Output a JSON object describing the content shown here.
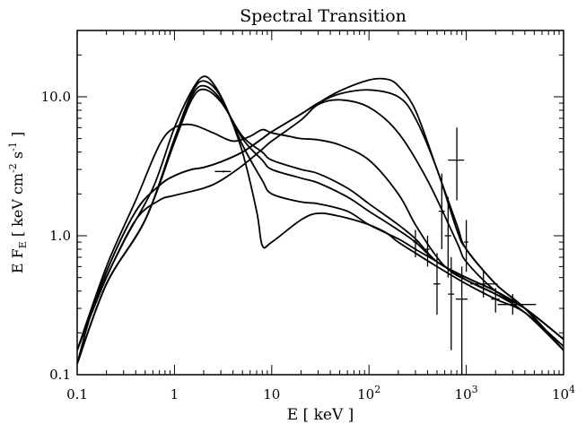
{
  "chart_data": {
    "type": "line",
    "title": "Spectral Transition",
    "xlabel": "E [ keV ]",
    "ylabel": "E F_E [ keV cm^-2 s^-1 ]",
    "x_scale": "log",
    "y_scale": "log",
    "xlim": [
      0.1,
      10000
    ],
    "ylim": [
      0.1,
      30
    ],
    "x_ticks": [
      {
        "value": 0.1,
        "label": "0.1"
      },
      {
        "value": 1,
        "label": "1"
      },
      {
        "value": 10,
        "label": "10"
      },
      {
        "value": 100,
        "label": "10",
        "exp": "2"
      },
      {
        "value": 1000,
        "label": "10",
        "exp": "3"
      },
      {
        "value": 10000,
        "label": "10",
        "exp": "4"
      }
    ],
    "y_ticks": [
      {
        "value": 0.1,
        "label": "0.1"
      },
      {
        "value": 1,
        "label": "1.0"
      },
      {
        "value": 10,
        "label": "10.0"
      }
    ],
    "grid": false,
    "legend": "none",
    "series": [
      {
        "x": [
          0.1,
          0.15,
          0.3,
          0.6,
          1.0,
          1.5,
          2.0,
          2.6,
          3.5,
          5,
          7,
          8,
          10,
          20,
          30,
          50,
          100,
          150,
          200,
          300,
          500,
          1000,
          2000,
          4000,
          10000
        ],
        "y": [
          0.12,
          0.32,
          0.9,
          2.2,
          6.0,
          11.0,
          14.0,
          12.0,
          8.0,
          4.0,
          1.5,
          0.85,
          0.9,
          1.3,
          1.45,
          1.38,
          1.2,
          1.05,
          0.9,
          0.75,
          0.6,
          0.45,
          0.35,
          0.28,
          0.16
        ]
      },
      {
        "x": [
          0.1,
          0.2,
          0.5,
          1,
          1.5,
          2,
          3,
          5,
          8,
          10,
          20,
          30,
          60,
          100,
          200,
          300,
          500,
          1000,
          2000,
          4000,
          10000
        ],
        "y": [
          0.12,
          0.45,
          1.3,
          5.0,
          10.5,
          13.0,
          10.0,
          4.5,
          2.5,
          2.0,
          1.75,
          1.7,
          1.5,
          1.2,
          0.95,
          0.8,
          0.65,
          0.48,
          0.38,
          0.3,
          0.18
        ]
      },
      {
        "x": [
          0.1,
          0.2,
          0.5,
          1,
          1.5,
          2,
          3,
          5,
          8,
          10,
          20,
          30,
          60,
          100,
          200,
          300,
          500,
          1000,
          2000,
          4000,
          10000
        ],
        "y": [
          0.12,
          0.45,
          1.3,
          4.8,
          10.0,
          12.0,
          9.5,
          5.0,
          3.5,
          3.0,
          2.6,
          2.4,
          1.9,
          1.5,
          1.1,
          0.9,
          0.65,
          0.5,
          0.4,
          0.3,
          0.18
        ]
      },
      {
        "x": [
          0.1,
          0.2,
          0.5,
          1,
          1.5,
          2,
          3,
          5,
          8,
          10,
          20,
          30,
          60,
          100,
          200,
          300,
          500,
          1000,
          2000,
          4000,
          10000
        ],
        "y": [
          0.12,
          0.45,
          1.3,
          4.7,
          9.5,
          11.3,
          9.2,
          5.2,
          4.0,
          3.5,
          3.0,
          2.8,
          2.2,
          1.7,
          1.2,
          0.95,
          0.65,
          0.5,
          0.4,
          0.3,
          0.18
        ]
      },
      {
        "x": [
          0.1,
          0.2,
          0.4,
          0.7,
          1,
          1.5,
          2.5,
          4,
          6,
          8,
          10,
          15,
          20,
          30,
          50,
          100,
          200,
          300,
          500,
          700,
          1000,
          2000,
          4000,
          10000
        ],
        "y": [
          0.15,
          0.6,
          1.8,
          4.5,
          6.0,
          6.3,
          5.5,
          4.8,
          5.2,
          5.8,
          5.5,
          5.2,
          5.0,
          4.9,
          4.5,
          3.5,
          2.0,
          1.2,
          0.7,
          0.55,
          0.48,
          0.38,
          0.28,
          0.15
        ]
      },
      {
        "x": [
          0.1,
          0.2,
          0.4,
          0.7,
          1,
          2,
          3,
          5,
          8,
          10,
          20,
          30,
          50,
          100,
          200,
          400,
          800,
          1000,
          2000,
          4000,
          10000
        ],
        "y": [
          0.15,
          0.5,
          1.3,
          1.8,
          1.95,
          2.2,
          2.5,
          3.2,
          4.2,
          4.8,
          6.8,
          8.8,
          9.5,
          8.4,
          5.5,
          2.5,
          0.9,
          0.65,
          0.4,
          0.3,
          0.15
        ]
      },
      {
        "x": [
          0.1,
          0.2,
          0.4,
          0.7,
          1,
          1.5,
          2,
          3,
          5,
          8,
          10,
          20,
          30,
          50,
          100,
          200,
          300,
          500,
          800,
          1000,
          2000,
          4000,
          10000
        ],
        "y": [
          0.15,
          0.55,
          1.5,
          2.3,
          2.7,
          3.0,
          3.1,
          3.4,
          4.0,
          5.0,
          5.6,
          7.5,
          9.0,
          10.5,
          11.2,
          10.0,
          7.0,
          3.0,
          1.1,
          0.8,
          0.45,
          0.3,
          0.15
        ]
      },
      {
        "x": [
          0.1,
          0.2,
          0.4,
          0.7,
          1,
          1.5,
          2,
          3,
          5,
          8,
          10,
          20,
          30,
          50,
          100,
          150,
          200,
          300,
          500,
          800,
          1000,
          2000,
          4000,
          10000
        ],
        "y": [
          0.15,
          0.55,
          1.5,
          2.3,
          2.7,
          3.0,
          3.1,
          3.4,
          4.0,
          5.0,
          5.6,
          7.5,
          9.0,
          11.0,
          13.2,
          13.4,
          12.0,
          8.0,
          3.0,
          1.2,
          0.8,
          0.45,
          0.3,
          0.15
        ]
      }
    ],
    "error_bars": [
      {
        "x": 800,
        "y": 3.5,
        "xerr": [
          650,
          950
        ],
        "yerr": [
          1.8,
          6.0
        ]
      },
      {
        "x": 560,
        "y": 1.5,
        "xerr": [
          520,
          600
        ],
        "yerr": [
          0.8,
          2.8
        ]
      },
      {
        "x": 650,
        "y": 1.0,
        "xerr": [
          600,
          700
        ],
        "yerr": [
          0.5,
          1.9
        ]
      },
      {
        "x": 500,
        "y": 0.45,
        "xerr": [
          460,
          540
        ],
        "yerr": [
          0.27,
          0.75
        ]
      },
      {
        "x": 900,
        "y": 0.35,
        "xerr": [
          780,
          1030
        ],
        "yerr": [
          0.1,
          0.6
        ]
      },
      {
        "x": 700,
        "y": 0.38,
        "xerr": [
          650,
          750
        ],
        "yerr": [
          0.15,
          0.7
        ]
      },
      {
        "x": 1000,
        "y": 0.9,
        "xerr": [
          950,
          1050
        ],
        "yerr": [
          0.55,
          1.3
        ]
      },
      {
        "x": 1500,
        "y": 0.45,
        "xerr": [
          1100,
          2100
        ],
        "yerr": [
          0.36,
          0.56
        ]
      },
      {
        "x": 3000,
        "y": 0.32,
        "xerr": [
          2100,
          5200
        ],
        "yerr": [
          0.27,
          0.38
        ]
      },
      {
        "x": 2000,
        "y": 0.35,
        "xerr": [
          1800,
          2200
        ],
        "yerr": [
          0.28,
          0.42
        ]
      },
      {
        "x": 3.2,
        "y": 2.9,
        "xerr": [
          2.6,
          3.8
        ],
        "yerr": [
          2.85,
          2.95
        ]
      },
      {
        "x": 400,
        "y": 0.8,
        "xerr": [
          380,
          420
        ],
        "yerr": [
          0.6,
          1.0
        ]
      },
      {
        "x": 300,
        "y": 0.9,
        "xerr": [
          285,
          315
        ],
        "yerr": [
          0.7,
          1.1
        ]
      }
    ]
  }
}
